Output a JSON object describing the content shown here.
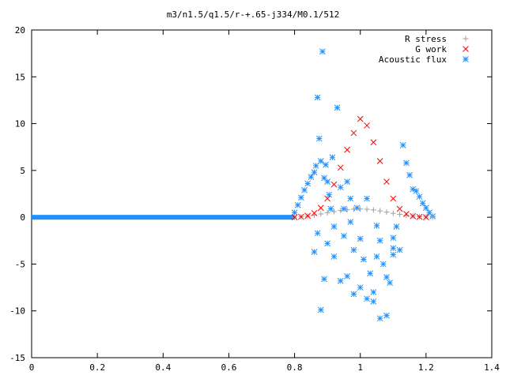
{
  "chart_data": {
    "type": "scatter",
    "title": "m3/n1.5/q1.5/r-+.65-j334/M0.1/512",
    "xlim": [
      0,
      1.4
    ],
    "ylim": [
      -15,
      20
    ],
    "x_ticks": [
      "0",
      "0.2",
      "0.4",
      "0.6",
      "0.8",
      "1",
      "1.2",
      "1.4"
    ],
    "y_ticks": [
      "20",
      "15",
      "10",
      "5",
      "0",
      "-5",
      "-10",
      "-15"
    ],
    "legend_placement": "top-right",
    "series": [
      {
        "name": "R stress",
        "marker": "+",
        "color": "#a0a0a0",
        "points": [
          [
            0.8,
            0
          ],
          [
            0.82,
            0.05
          ],
          [
            0.84,
            0.12
          ],
          [
            0.86,
            0.22
          ],
          [
            0.88,
            0.35
          ],
          [
            0.9,
            0.48
          ],
          [
            0.92,
            0.6
          ],
          [
            0.94,
            0.72
          ],
          [
            0.96,
            0.8
          ],
          [
            0.98,
            0.86
          ],
          [
            1.0,
            0.88
          ],
          [
            1.02,
            0.85
          ],
          [
            1.04,
            0.78
          ],
          [
            1.06,
            0.68
          ],
          [
            1.08,
            0.55
          ],
          [
            1.1,
            0.42
          ],
          [
            1.12,
            0.3
          ],
          [
            1.14,
            0.2
          ],
          [
            1.16,
            0.12
          ],
          [
            1.18,
            0.06
          ],
          [
            1.2,
            0.02
          ],
          [
            1.22,
            0
          ]
        ]
      },
      {
        "name": "G work",
        "marker": "x",
        "color": "#ff0000",
        "points": [
          [
            0.8,
            0
          ],
          [
            0.82,
            0.05
          ],
          [
            0.84,
            0.15
          ],
          [
            0.86,
            0.45
          ],
          [
            0.88,
            1.0
          ],
          [
            0.9,
            2.0
          ],
          [
            0.92,
            3.5
          ],
          [
            0.94,
            5.3
          ],
          [
            0.96,
            7.2
          ],
          [
            0.98,
            9.0
          ],
          [
            1.0,
            10.5
          ],
          [
            1.02,
            9.8
          ],
          [
            1.04,
            8.0
          ],
          [
            1.06,
            6.0
          ],
          [
            1.08,
            3.8
          ],
          [
            1.1,
            2.0
          ],
          [
            1.12,
            0.9
          ],
          [
            1.14,
            0.35
          ],
          [
            1.16,
            0.12
          ],
          [
            1.18,
            0.03
          ],
          [
            1.2,
            0
          ]
        ]
      },
      {
        "name": "Acoustic flux",
        "marker": "*",
        "color": "#1e90ff",
        "baseline": {
          "x": [
            0,
            0.8
          ],
          "y": 0
        },
        "points": [
          [
            0.8,
            0.5
          ],
          [
            0.81,
            1.3
          ],
          [
            0.82,
            2.1
          ],
          [
            0.83,
            2.9
          ],
          [
            0.84,
            3.6
          ],
          [
            0.85,
            4.3
          ],
          [
            0.86,
            4.8
          ],
          [
            0.865,
            5.5
          ],
          [
            0.87,
            12.8
          ],
          [
            0.875,
            8.4
          ],
          [
            0.88,
            6.0
          ],
          [
            0.885,
            17.7
          ],
          [
            0.89,
            4.2
          ],
          [
            0.895,
            5.6
          ],
          [
            0.9,
            3.8
          ],
          [
            0.905,
            2.4
          ],
          [
            0.91,
            0.9
          ],
          [
            0.915,
            6.4
          ],
          [
            0.92,
            -1.0
          ],
          [
            0.93,
            11.7
          ],
          [
            0.94,
            3.2
          ],
          [
            0.95,
            -2.0
          ],
          [
            0.96,
            3.8
          ],
          [
            0.97,
            2.0
          ],
          [
            0.98,
            -3.5
          ],
          [
            0.99,
            1.0
          ],
          [
            1.0,
            -2.3
          ],
          [
            1.01,
            -4.5
          ],
          [
            1.02,
            2.0
          ],
          [
            1.03,
            -6.0
          ],
          [
            1.04,
            -8.0
          ],
          [
            1.05,
            -4.2
          ],
          [
            1.06,
            -2.5
          ],
          [
            1.07,
            -5.0
          ],
          [
            1.08,
            -10.5
          ],
          [
            1.09,
            -7.0
          ],
          [
            1.1,
            -4.0
          ],
          [
            1.11,
            -1.0
          ],
          [
            1.12,
            -3.5
          ],
          [
            1.13,
            7.7
          ],
          [
            1.14,
            5.8
          ],
          [
            1.15,
            4.5
          ],
          [
            1.16,
            3.0
          ],
          [
            1.17,
            2.8
          ],
          [
            1.18,
            2.2
          ],
          [
            1.19,
            1.5
          ],
          [
            1.2,
            1.0
          ],
          [
            1.21,
            0.5
          ],
          [
            1.22,
            0.1
          ],
          [
            0.86,
            -3.7
          ],
          [
            0.87,
            -1.7
          ],
          [
            0.88,
            -9.9
          ],
          [
            0.89,
            -6.6
          ],
          [
            0.9,
            -2.8
          ],
          [
            0.92,
            -4.2
          ],
          [
            0.94,
            -6.8
          ],
          [
            0.96,
            -6.3
          ],
          [
            0.98,
            -8.2
          ],
          [
            1.0,
            -7.5
          ],
          [
            1.02,
            -8.7
          ],
          [
            1.04,
            -9.0
          ],
          [
            1.06,
            -10.8
          ],
          [
            1.08,
            -6.4
          ],
          [
            1.1,
            -3.3
          ],
          [
            0.95,
            0.9
          ],
          [
            0.97,
            -0.5
          ],
          [
            1.05,
            -0.9
          ],
          [
            1.1,
            -2.2
          ]
        ]
      }
    ]
  }
}
